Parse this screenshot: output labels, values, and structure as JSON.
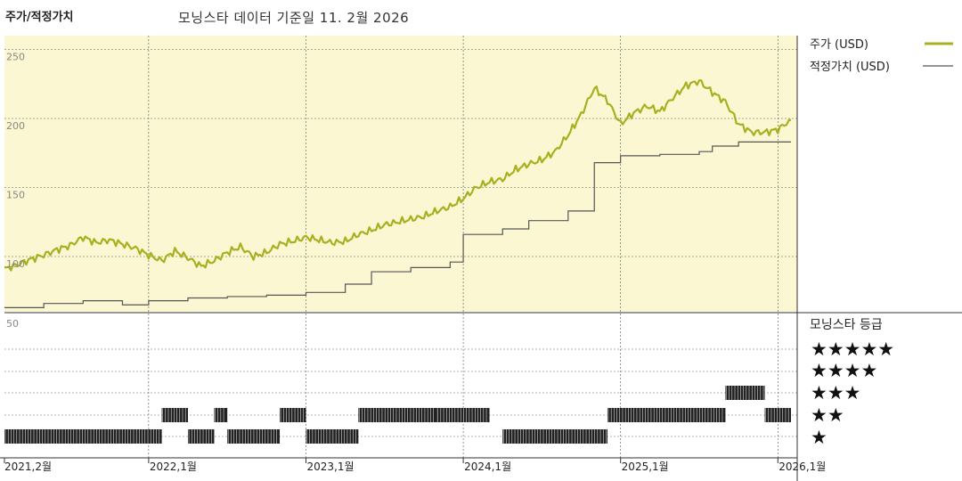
{
  "header": {
    "title": "주가/적정가치",
    "subtitle": "모닝스타 데이터 기준일 11. 2월 2026"
  },
  "legend": {
    "price_label": "주가 (USD)",
    "fair_label": "적정가치 (USD)",
    "rating_title": "모닝스타 등급"
  },
  "colors": {
    "price_line": "#a8b020",
    "fair_line": "#555555",
    "plot_bg": "#fbf7d2",
    "rating_bar": "#222222"
  },
  "chart_data": [
    {
      "type": "line",
      "title": "주가/적정가치",
      "ylim": [
        60,
        260
      ],
      "yticks": [
        100,
        150,
        200,
        250
      ],
      "x_labels": [
        "2021,2월",
        "2022,1월",
        "2023,1월",
        "2024,1월",
        "2025,1월",
        "2026,1월"
      ],
      "series": [
        {
          "name": "주가 (USD)",
          "points": [
            [
              "2021-02",
              91
            ],
            [
              "2021-03",
              94
            ],
            [
              "2021-04",
              98
            ],
            [
              "2021-05",
              101
            ],
            [
              "2021-06",
              105
            ],
            [
              "2021-07",
              108
            ],
            [
              "2021-08",
              114
            ],
            [
              "2021-09",
              110
            ],
            [
              "2021-10",
              112
            ],
            [
              "2021-11",
              109
            ],
            [
              "2021-12",
              106
            ],
            [
              "2022-01",
              101
            ],
            [
              "2022-02",
              97
            ],
            [
              "2022-03",
              104
            ],
            [
              "2022-04",
              99
            ],
            [
              "2022-05",
              93
            ],
            [
              "2022-06",
              97
            ],
            [
              "2022-07",
              103
            ],
            [
              "2022-08",
              107
            ],
            [
              "2022-09",
              100
            ],
            [
              "2022-10",
              103
            ],
            [
              "2022-11",
              109
            ],
            [
              "2022-12",
              111
            ],
            [
              "2023-01",
              114
            ],
            [
              "2023-02",
              112
            ],
            [
              "2023-03",
              110
            ],
            [
              "2023-04",
              111
            ],
            [
              "2023-05",
              116
            ],
            [
              "2023-06",
              119
            ],
            [
              "2023-07",
              123
            ],
            [
              "2023-08",
              125
            ],
            [
              "2023-09",
              127
            ],
            [
              "2023-10",
              129
            ],
            [
              "2023-11",
              133
            ],
            [
              "2023-12",
              136
            ],
            [
              "2024-01",
              142
            ],
            [
              "2024-02",
              150
            ],
            [
              "2024-03",
              154
            ],
            [
              "2024-04",
              156
            ],
            [
              "2024-05",
              163
            ],
            [
              "2024-06",
              167
            ],
            [
              "2024-07",
              170
            ],
            [
              "2024-08",
              176
            ],
            [
              "2024-09",
              188
            ],
            [
              "2024-10",
              203
            ],
            [
              "2024-11",
              222
            ],
            [
              "2024-12",
              213
            ],
            [
              "2025-01",
              196
            ],
            [
              "2025-02",
              204
            ],
            [
              "2025-03",
              209
            ],
            [
              "2025-04",
              205
            ],
            [
              "2025-05",
              215
            ],
            [
              "2025-06",
              224
            ],
            [
              "2025-07",
              227
            ],
            [
              "2025-08",
              219
            ],
            [
              "2025-09",
              212
            ],
            [
              "2025-10",
              196
            ],
            [
              "2025-11",
              190
            ],
            [
              "2025-12",
              190
            ],
            [
              "2026-01",
              192
            ],
            [
              "2026-02",
              199
            ]
          ]
        },
        {
          "name": "적정가치 (USD)",
          "steps": [
            [
              "2021-02",
              63
            ],
            [
              "2021-05",
              66
            ],
            [
              "2021-08",
              68
            ],
            [
              "2021-11",
              65
            ],
            [
              "2022-01",
              68
            ],
            [
              "2022-04",
              70
            ],
            [
              "2022-07",
              71
            ],
            [
              "2022-10",
              72
            ],
            [
              "2023-01",
              74
            ],
            [
              "2023-04",
              80
            ],
            [
              "2023-06",
              89
            ],
            [
              "2023-09",
              92
            ],
            [
              "2023-12",
              96
            ],
            [
              "2024-01",
              116
            ],
            [
              "2024-04",
              120
            ],
            [
              "2024-06",
              126
            ],
            [
              "2024-09",
              133
            ],
            [
              "2024-11",
              168
            ],
            [
              "2025-01",
              173
            ],
            [
              "2025-04",
              174
            ],
            [
              "2025-07",
              176
            ],
            [
              "2025-08",
              180
            ],
            [
              "2025-10",
              183
            ],
            [
              "2026-02",
              183
            ]
          ]
        }
      ]
    },
    {
      "type": "bar",
      "title": "모닝스타 등급",
      "y_label_top": "50",
      "star_levels": [
        "★★★★★",
        "★★★★",
        "★★★",
        "★★",
        "★"
      ],
      "rating_periods": [
        {
          "start": "2021-02",
          "end": "2022-02",
          "stars": 1
        },
        {
          "start": "2022-02",
          "end": "2022-04",
          "stars": 2
        },
        {
          "start": "2022-04",
          "end": "2022-06",
          "stars": 1
        },
        {
          "start": "2022-06",
          "end": "2022-07",
          "stars": 2
        },
        {
          "start": "2022-07",
          "end": "2022-11",
          "stars": 1
        },
        {
          "start": "2022-11",
          "end": "2023-01",
          "stars": 2
        },
        {
          "start": "2023-01",
          "end": "2023-03",
          "stars": 1
        },
        {
          "start": "2023-03",
          "end": "2023-05",
          "stars": 1
        },
        {
          "start": "2023-05",
          "end": "2023-11",
          "stars": 2
        },
        {
          "start": "2023-11",
          "end": "2024-03",
          "stars": 2
        },
        {
          "start": "2024-04",
          "end": "2024-12",
          "stars": 1
        },
        {
          "start": "2024-12",
          "end": "2025-09",
          "stars": 2
        },
        {
          "start": "2025-09",
          "end": "2025-12",
          "stars": 3
        },
        {
          "start": "2025-12",
          "end": "2026-02",
          "stars": 2
        }
      ]
    }
  ]
}
